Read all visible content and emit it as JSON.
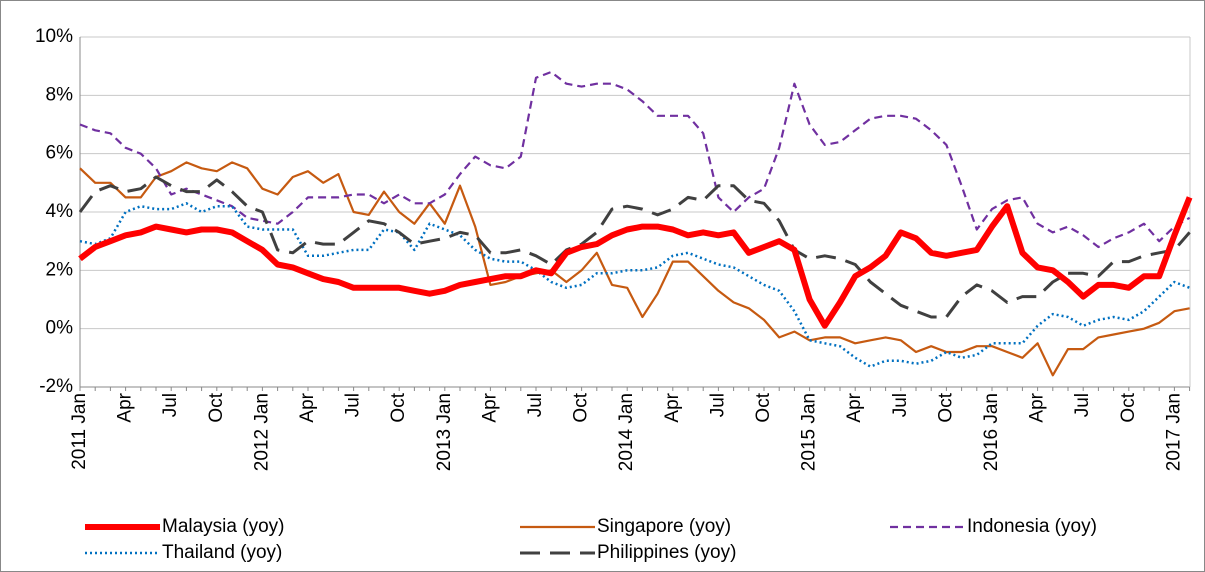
{
  "chart_data": {
    "type": "line",
    "categories": [
      "2011 Jan",
      null,
      null,
      "Apr",
      null,
      null,
      "Jul",
      null,
      null,
      "Oct",
      null,
      null,
      "2012 Jan",
      null,
      null,
      "Apr",
      null,
      null,
      "Jul",
      null,
      null,
      "Oct",
      null,
      null,
      "2013 Jan",
      null,
      null,
      "Apr",
      null,
      null,
      "Jul",
      null,
      null,
      "Oct",
      null,
      null,
      "2014 Jan",
      null,
      null,
      "Apr",
      null,
      null,
      "Jul",
      null,
      null,
      "Oct",
      null,
      null,
      "2015 Jan",
      null,
      null,
      "Apr",
      null,
      null,
      "Jul",
      null,
      null,
      "Oct",
      null,
      null,
      "2016 Jan",
      null,
      null,
      "Apr",
      null,
      null,
      "Jul",
      null,
      null,
      "Oct",
      null,
      null,
      "2017 Jan",
      null
    ],
    "series": [
      {
        "name": "Malaysia (yoy)",
        "color": "#ff0000",
        "width": 6,
        "style": "solid",
        "values": [
          2.4,
          2.8,
          3.0,
          3.2,
          3.3,
          3.5,
          3.4,
          3.3,
          3.4,
          3.4,
          3.3,
          3.0,
          2.7,
          2.2,
          2.1,
          1.9,
          1.7,
          1.6,
          1.4,
          1.4,
          1.4,
          1.4,
          1.3,
          1.2,
          1.3,
          1.5,
          1.6,
          1.7,
          1.8,
          1.8,
          2.0,
          1.9,
          2.6,
          2.8,
          2.9,
          3.2,
          3.4,
          3.5,
          3.5,
          3.4,
          3.2,
          3.3,
          3.2,
          3.3,
          2.6,
          2.8,
          3.0,
          2.7,
          1.0,
          0.1,
          0.9,
          1.8,
          2.1,
          2.5,
          3.3,
          3.1,
          2.6,
          2.5,
          2.6,
          2.7,
          3.5,
          4.2,
          2.6,
          2.1,
          2.0,
          1.6,
          1.1,
          1.5,
          1.5,
          1.4,
          1.8,
          1.8,
          3.2,
          4.5
        ]
      },
      {
        "name": "Singapore (yoy)",
        "color": "#c65a11",
        "width": 2.2,
        "style": "solid",
        "values": [
          5.5,
          5.0,
          5.0,
          4.5,
          4.5,
          5.2,
          5.4,
          5.7,
          5.5,
          5.4,
          5.7,
          5.5,
          4.8,
          4.6,
          5.2,
          5.4,
          5.0,
          5.3,
          4.0,
          3.9,
          4.7,
          4.0,
          3.6,
          4.3,
          3.6,
          4.9,
          3.5,
          1.5,
          1.6,
          1.8,
          1.9,
          2.0,
          1.6,
          2.0,
          2.6,
          1.5,
          1.4,
          0.4,
          1.2,
          2.3,
          2.3,
          1.8,
          1.3,
          0.9,
          0.7,
          0.3,
          -0.3,
          -0.1,
          -0.4,
          -0.3,
          -0.3,
          -0.5,
          -0.4,
          -0.3,
          -0.4,
          -0.8,
          -0.6,
          -0.8,
          -0.8,
          -0.6,
          -0.6,
          -0.8,
          -1.0,
          -0.5,
          -1.6,
          -0.7,
          -0.7,
          -0.3,
          -0.2,
          -0.1,
          0.0,
          0.2,
          0.6,
          0.7
        ]
      },
      {
        "name": "Indonesia (yoy)",
        "color": "#7030a0",
        "width": 2.2,
        "style": "dashed",
        "values": [
          7.0,
          6.8,
          6.7,
          6.2,
          6.0,
          5.5,
          4.6,
          4.8,
          4.6,
          4.4,
          4.2,
          3.8,
          3.7,
          3.6,
          4.0,
          4.5,
          4.5,
          4.5,
          4.6,
          4.6,
          4.3,
          4.6,
          4.3,
          4.3,
          4.6,
          5.3,
          5.9,
          5.6,
          5.5,
          5.9,
          8.6,
          8.8,
          8.4,
          8.3,
          8.4,
          8.4,
          8.2,
          7.8,
          7.3,
          7.3,
          7.3,
          6.7,
          4.5,
          4.0,
          4.5,
          4.8,
          6.2,
          8.4,
          7.0,
          6.3,
          6.4,
          6.8,
          7.2,
          7.3,
          7.3,
          7.2,
          6.8,
          6.3,
          4.9,
          3.4,
          4.1,
          4.4,
          4.5,
          3.6,
          3.3,
          3.5,
          3.2,
          2.8,
          3.1,
          3.3,
          3.6,
          3.0,
          3.5,
          3.8
        ]
      },
      {
        "name": "Thailand (yoy)",
        "color": "#0070c0",
        "width": 2.5,
        "style": "dotted",
        "values": [
          3.0,
          2.9,
          3.1,
          4.0,
          4.2,
          4.1,
          4.1,
          4.3,
          4.0,
          4.2,
          4.2,
          3.5,
          3.4,
          3.4,
          3.4,
          2.5,
          2.5,
          2.6,
          2.7,
          2.7,
          3.4,
          3.3,
          2.7,
          3.6,
          3.4,
          3.2,
          2.7,
          2.4,
          2.3,
          2.3,
          2.0,
          1.6,
          1.4,
          1.5,
          1.9,
          1.9,
          2.0,
          2.0,
          2.1,
          2.5,
          2.6,
          2.4,
          2.2,
          2.1,
          1.8,
          1.5,
          1.3,
          0.6,
          -0.4,
          -0.5,
          -0.6,
          -1.0,
          -1.3,
          -1.1,
          -1.1,
          -1.2,
          -1.1,
          -0.8,
          -1.0,
          -0.9,
          -0.5,
          -0.5,
          -0.5,
          0.1,
          0.5,
          0.4,
          0.1,
          0.3,
          0.4,
          0.3,
          0.6,
          1.1,
          1.6,
          1.4
        ]
      },
      {
        "name": "Philippines (yoy)",
        "color": "#404040",
        "width": 3,
        "style": "long-dashed",
        "values": [
          4.0,
          4.7,
          4.9,
          4.7,
          4.8,
          5.2,
          4.9,
          4.7,
          4.7,
          5.1,
          4.7,
          4.2,
          4.0,
          2.7,
          2.6,
          3.0,
          2.9,
          2.9,
          3.3,
          3.7,
          3.6,
          3.3,
          2.9,
          3.0,
          3.1,
          3.3,
          3.2,
          2.6,
          2.6,
          2.7,
          2.5,
          2.2,
          2.7,
          2.9,
          3.3,
          4.1,
          4.2,
          4.1,
          3.9,
          4.1,
          4.5,
          4.4,
          4.9,
          4.9,
          4.4,
          4.3,
          3.7,
          2.7,
          2.4,
          2.5,
          2.4,
          2.2,
          1.6,
          1.2,
          0.8,
          0.6,
          0.4,
          0.4,
          1.1,
          1.5,
          1.3,
          0.9,
          1.1,
          1.1,
          1.6,
          1.9,
          1.9,
          1.8,
          2.3,
          2.3,
          2.5,
          2.6,
          2.7,
          3.3
        ]
      }
    ],
    "ylim": [
      -2,
      10
    ],
    "yticks": [
      {
        "value": -2,
        "label": "-2%"
      },
      {
        "value": 0,
        "label": "0%"
      },
      {
        "value": 2,
        "label": "2%"
      },
      {
        "value": 4,
        "label": "4%"
      },
      {
        "value": 6,
        "label": "6%"
      },
      {
        "value": 8,
        "label": "8%"
      },
      {
        "value": 10,
        "label": "10%"
      }
    ],
    "grid": true,
    "legend": "bottom"
  }
}
